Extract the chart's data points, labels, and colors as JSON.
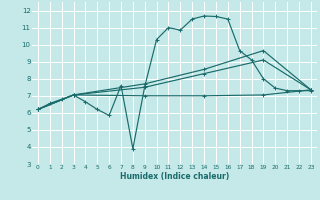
{
  "background_color": "#c5e8e8",
  "grid_color": "#ffffff",
  "line_color": "#1a6b6b",
  "xlim": [
    -0.5,
    23.5
  ],
  "ylim": [
    3,
    12.5
  ],
  "xlabel": "Humidex (Indice chaleur)",
  "xticks": [
    0,
    1,
    2,
    3,
    4,
    5,
    6,
    7,
    8,
    9,
    10,
    11,
    12,
    13,
    14,
    15,
    16,
    17,
    18,
    19,
    20,
    21,
    22,
    23
  ],
  "yticks": [
    3,
    4,
    5,
    6,
    7,
    8,
    9,
    10,
    11,
    12
  ],
  "curve1_x": [
    0,
    1,
    2,
    3,
    4,
    5,
    6,
    7,
    8,
    9,
    10,
    11,
    12,
    13,
    14,
    15,
    16,
    17,
    18,
    19,
    20,
    21,
    22,
    23
  ],
  "curve1_y": [
    6.2,
    6.55,
    6.8,
    7.05,
    6.65,
    6.2,
    5.85,
    7.6,
    3.9,
    7.55,
    10.3,
    11.0,
    10.85,
    11.5,
    11.68,
    11.65,
    11.5,
    9.65,
    9.1,
    8.0,
    7.45,
    7.3,
    7.3,
    7.3
  ],
  "curve2_x": [
    0,
    3,
    9,
    14,
    19,
    23
  ],
  "curve2_y": [
    6.2,
    7.05,
    7.5,
    8.3,
    9.1,
    7.35
  ],
  "curve3_x": [
    0,
    3,
    9,
    14,
    19,
    23
  ],
  "curve3_y": [
    6.2,
    7.05,
    7.7,
    8.55,
    9.65,
    7.35
  ],
  "curve4_x": [
    0,
    3,
    9,
    14,
    19,
    23
  ],
  "curve4_y": [
    6.2,
    7.05,
    7.0,
    7.0,
    7.05,
    7.35
  ]
}
